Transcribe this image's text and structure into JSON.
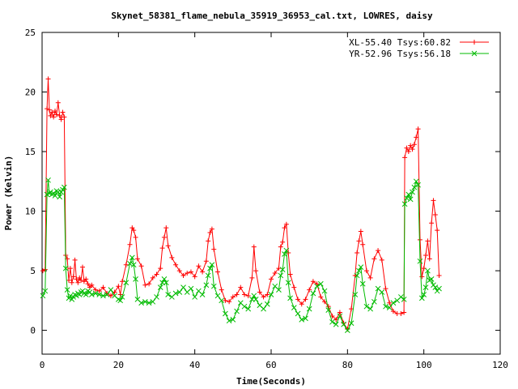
{
  "chart_data": {
    "type": "line",
    "title": "Skynet_58381_flame_nebula_35919_36953_cal.txt, LOWRES, daisy",
    "xlabel": "Time(Seconds)",
    "ylabel": "Power (Kelvin)",
    "xlim": [
      0,
      120
    ],
    "ylim": [
      -2,
      25
    ],
    "xticks": [
      "0",
      "20",
      "40",
      "60",
      "80",
      "100",
      "120"
    ],
    "yticks": [
      "0",
      "5",
      "10",
      "15",
      "20",
      "25"
    ],
    "grid": false,
    "legend_position": "top-right",
    "series": [
      {
        "name": "XL-55.40 Tsys:60.82",
        "color": "#ff0000",
        "marker": "plus",
        "points": [
          [
            0.2,
            5.0
          ],
          [
            0.8,
            5.1
          ],
          [
            1.3,
            18.6
          ],
          [
            1.6,
            21.1
          ],
          [
            1.9,
            18.5
          ],
          [
            2.2,
            18.0
          ],
          [
            2.6,
            18.3
          ],
          [
            3.0,
            17.9
          ],
          [
            3.4,
            18.4
          ],
          [
            3.8,
            18.1
          ],
          [
            4.2,
            19.1
          ],
          [
            4.6,
            18.0
          ],
          [
            5.0,
            17.7
          ],
          [
            5.4,
            18.3
          ],
          [
            5.8,
            17.9
          ],
          [
            6.2,
            6.3
          ],
          [
            6.6,
            6.0
          ],
          [
            7.0,
            4.2
          ],
          [
            7.4,
            5.2
          ],
          [
            7.8,
            4.0
          ],
          [
            8.2,
            4.5
          ],
          [
            8.6,
            5.9
          ],
          [
            9.0,
            4.3
          ],
          [
            9.4,
            4.0
          ],
          [
            9.8,
            4.4
          ],
          [
            10.2,
            4.2
          ],
          [
            10.6,
            5.3
          ],
          [
            11.0,
            4.1
          ],
          [
            11.5,
            4.3
          ],
          [
            12,
            3.9
          ],
          [
            12.5,
            3.6
          ],
          [
            13,
            3.8
          ],
          [
            14,
            3.4
          ],
          [
            15,
            3.3
          ],
          [
            16,
            3.6
          ],
          [
            17,
            3.1
          ],
          [
            18,
            2.9
          ],
          [
            19,
            3.2
          ],
          [
            20,
            3.7
          ],
          [
            20.5,
            3.0
          ],
          [
            21,
            4.1
          ],
          [
            22,
            5.5
          ],
          [
            23,
            7.2
          ],
          [
            23.6,
            8.6
          ],
          [
            24,
            8.4
          ],
          [
            24.5,
            7.8
          ],
          [
            25,
            6.0
          ],
          [
            26,
            5.4
          ],
          [
            27,
            3.8
          ],
          [
            28,
            3.9
          ],
          [
            29,
            4.4
          ],
          [
            30,
            4.7
          ],
          [
            31,
            5.2
          ],
          [
            31.5,
            6.9
          ],
          [
            32,
            7.8
          ],
          [
            32.5,
            8.6
          ],
          [
            33,
            7.1
          ],
          [
            34,
            6.1
          ],
          [
            35,
            5.5
          ],
          [
            36,
            5.0
          ],
          [
            37,
            4.6
          ],
          [
            38,
            4.8
          ],
          [
            39,
            4.9
          ],
          [
            40,
            4.5
          ],
          [
            41,
            5.4
          ],
          [
            42,
            4.9
          ],
          [
            43,
            5.8
          ],
          [
            43.5,
            7.5
          ],
          [
            44,
            8.2
          ],
          [
            44.5,
            8.5
          ],
          [
            45,
            6.8
          ],
          [
            46,
            4.9
          ],
          [
            47,
            3.4
          ],
          [
            48,
            2.5
          ],
          [
            49,
            2.4
          ],
          [
            50,
            2.8
          ],
          [
            51,
            3.0
          ],
          [
            52,
            3.6
          ],
          [
            53,
            3.0
          ],
          [
            54,
            2.9
          ],
          [
            55,
            4.4
          ],
          [
            55.5,
            7.0
          ],
          [
            56,
            5.0
          ],
          [
            57,
            3.2
          ],
          [
            58,
            2.8
          ],
          [
            59,
            3.0
          ],
          [
            60,
            4.3
          ],
          [
            61,
            4.8
          ],
          [
            62,
            5.2
          ],
          [
            62.5,
            7.0
          ],
          [
            63,
            7.4
          ],
          [
            63.5,
            8.6
          ],
          [
            64,
            8.9
          ],
          [
            64.5,
            6.5
          ],
          [
            65,
            4.7
          ],
          [
            66,
            3.6
          ],
          [
            67,
            2.6
          ],
          [
            68,
            2.2
          ],
          [
            69,
            2.6
          ],
          [
            70,
            3.4
          ],
          [
            71,
            4.1
          ],
          [
            72,
            3.9
          ],
          [
            73,
            2.8
          ],
          [
            74,
            2.4
          ],
          [
            75,
            2.0
          ],
          [
            76,
            1.2
          ],
          [
            77,
            0.9
          ],
          [
            78,
            1.5
          ],
          [
            79,
            0.6
          ],
          [
            80,
            0.1
          ],
          [
            81,
            1.8
          ],
          [
            82,
            4.6
          ],
          [
            82.5,
            6.5
          ],
          [
            83,
            7.5
          ],
          [
            83.5,
            8.3
          ],
          [
            84,
            7.2
          ],
          [
            85,
            5.0
          ],
          [
            86,
            4.4
          ],
          [
            87,
            6.0
          ],
          [
            88,
            6.7
          ],
          [
            89,
            5.9
          ],
          [
            90,
            3.5
          ],
          [
            91,
            2.3
          ],
          [
            92,
            1.6
          ],
          [
            93,
            1.4
          ],
          [
            94,
            1.4
          ],
          [
            94.8,
            1.5
          ],
          [
            95,
            14.5
          ],
          [
            95.5,
            15.3
          ],
          [
            96,
            15.0
          ],
          [
            96.5,
            15.5
          ],
          [
            97,
            15.2
          ],
          [
            97.5,
            15.6
          ],
          [
            98,
            16.2
          ],
          [
            98.5,
            16.9
          ],
          [
            99,
            7.6
          ],
          [
            99.5,
            4.5
          ],
          [
            100,
            5.2
          ],
          [
            100.5,
            6.3
          ],
          [
            101,
            7.5
          ],
          [
            101.5,
            6.0
          ],
          [
            102,
            9.0
          ],
          [
            102.5,
            10.9
          ],
          [
            103,
            9.7
          ],
          [
            103.5,
            8.4
          ],
          [
            104,
            4.6
          ]
        ]
      },
      {
        "name": "YR-52.96 Tsys:56.18",
        "color": "#00bb00",
        "marker": "cross",
        "points": [
          [
            0.2,
            2.9
          ],
          [
            0.8,
            3.3
          ],
          [
            1.3,
            11.4
          ],
          [
            1.6,
            12.6
          ],
          [
            1.9,
            11.5
          ],
          [
            2.2,
            11.6
          ],
          [
            2.6,
            11.4
          ],
          [
            3.0,
            11.5
          ],
          [
            3.4,
            11.3
          ],
          [
            3.8,
            11.7
          ],
          [
            4.2,
            11.6
          ],
          [
            4.6,
            11.2
          ],
          [
            5.0,
            11.6
          ],
          [
            5.4,
            11.8
          ],
          [
            5.8,
            12.0
          ],
          [
            6.2,
            5.2
          ],
          [
            6.6,
            3.4
          ],
          [
            7.0,
            2.7
          ],
          [
            7.4,
            2.9
          ],
          [
            7.8,
            2.6
          ],
          [
            8.2,
            2.8
          ],
          [
            8.6,
            3.0
          ],
          [
            9.0,
            2.9
          ],
          [
            9.4,
            3.1
          ],
          [
            9.8,
            3.0
          ],
          [
            10.2,
            3.2
          ],
          [
            10.6,
            3.3
          ],
          [
            11.0,
            3.1
          ],
          [
            11.5,
            3.0
          ],
          [
            12,
            3.3
          ],
          [
            12.5,
            3.2
          ],
          [
            13,
            3.0
          ],
          [
            14,
            3.1
          ],
          [
            15,
            3.0
          ],
          [
            16,
            2.9
          ],
          [
            17,
            3.0
          ],
          [
            18,
            3.4
          ],
          [
            19,
            2.9
          ],
          [
            20,
            2.6
          ],
          [
            20.5,
            2.5
          ],
          [
            21,
            2.8
          ],
          [
            22,
            4.0
          ],
          [
            23,
            5.6
          ],
          [
            23.6,
            6.1
          ],
          [
            24,
            5.5
          ],
          [
            24.5,
            4.3
          ],
          [
            25,
            2.6
          ],
          [
            26,
            2.3
          ],
          [
            27,
            2.4
          ],
          [
            28,
            2.3
          ],
          [
            29,
            2.4
          ],
          [
            30,
            2.8
          ],
          [
            31,
            3.6
          ],
          [
            31.5,
            4.0
          ],
          [
            32,
            4.3
          ],
          [
            32.5,
            4.0
          ],
          [
            33,
            3.0
          ],
          [
            34,
            2.8
          ],
          [
            35,
            3.1
          ],
          [
            36,
            3.2
          ],
          [
            37,
            3.6
          ],
          [
            38,
            3.2
          ],
          [
            39,
            3.5
          ],
          [
            40,
            2.8
          ],
          [
            41,
            3.3
          ],
          [
            42,
            3.0
          ],
          [
            43,
            3.8
          ],
          [
            43.5,
            4.6
          ],
          [
            44,
            5.2
          ],
          [
            44.5,
            5.5
          ],
          [
            45,
            3.7
          ],
          [
            46,
            2.9
          ],
          [
            47,
            2.5
          ],
          [
            48,
            1.4
          ],
          [
            49,
            0.8
          ],
          [
            50,
            0.9
          ],
          [
            51,
            1.6
          ],
          [
            52,
            2.3
          ],
          [
            53,
            2.0
          ],
          [
            54,
            1.8
          ],
          [
            55,
            2.6
          ],
          [
            55.5,
            2.9
          ],
          [
            56,
            2.6
          ],
          [
            57,
            2.1
          ],
          [
            58,
            1.8
          ],
          [
            59,
            2.2
          ],
          [
            60,
            3.0
          ],
          [
            61,
            3.7
          ],
          [
            62,
            3.4
          ],
          [
            62.5,
            4.6
          ],
          [
            63,
            5.1
          ],
          [
            63.5,
            6.4
          ],
          [
            64,
            6.7
          ],
          [
            64.5,
            4.0
          ],
          [
            65,
            2.7
          ],
          [
            66,
            1.9
          ],
          [
            67,
            1.4
          ],
          [
            68,
            0.9
          ],
          [
            69,
            1.0
          ],
          [
            70,
            1.8
          ],
          [
            71,
            3.1
          ],
          [
            72,
            3.7
          ],
          [
            73,
            3.9
          ],
          [
            74,
            3.3
          ],
          [
            75,
            1.7
          ],
          [
            76,
            0.7
          ],
          [
            77,
            0.5
          ],
          [
            78,
            1.2
          ],
          [
            79,
            0.5
          ],
          [
            80,
            0.0
          ],
          [
            81,
            0.6
          ],
          [
            82,
            3.0
          ],
          [
            82.5,
            4.6
          ],
          [
            83,
            5.0
          ],
          [
            83.5,
            5.3
          ],
          [
            84,
            3.9
          ],
          [
            85,
            2.0
          ],
          [
            86,
            1.8
          ],
          [
            87,
            2.4
          ],
          [
            88,
            3.5
          ],
          [
            89,
            3.2
          ],
          [
            90,
            2.0
          ],
          [
            91,
            1.9
          ],
          [
            92,
            2.3
          ],
          [
            93,
            2.5
          ],
          [
            94,
            2.8
          ],
          [
            94.8,
            2.6
          ],
          [
            95,
            10.6
          ],
          [
            95.5,
            11.1
          ],
          [
            96,
            11.4
          ],
          [
            96.5,
            11.0
          ],
          [
            97,
            11.6
          ],
          [
            97.5,
            12.0
          ],
          [
            98,
            12.5
          ],
          [
            98.5,
            12.2
          ],
          [
            99,
            5.8
          ],
          [
            99.5,
            2.7
          ],
          [
            100,
            3.0
          ],
          [
            100.5,
            3.6
          ],
          [
            101,
            5.0
          ],
          [
            101.5,
            4.2
          ],
          [
            102,
            4.3
          ],
          [
            102.5,
            3.8
          ],
          [
            103,
            3.6
          ],
          [
            103.5,
            3.3
          ],
          [
            104,
            3.5
          ]
        ]
      }
    ]
  }
}
